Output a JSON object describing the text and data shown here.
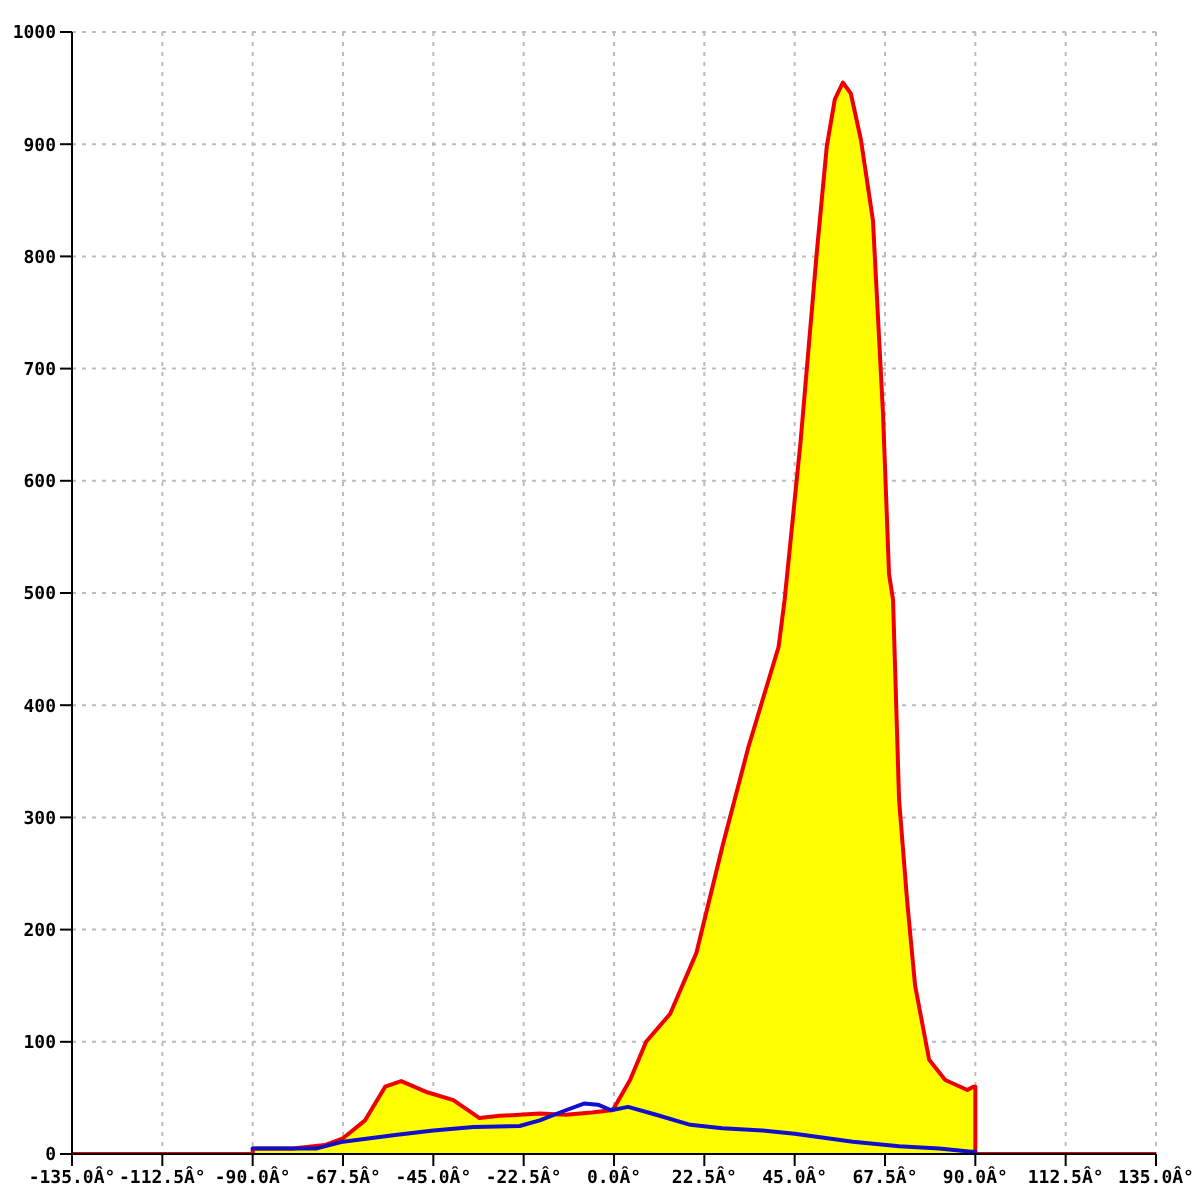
{
  "chart_data": {
    "type": "area",
    "xlim": [
      -135,
      135
    ],
    "xticks": [
      {
        "value": -135,
        "label": "-135.0Â°"
      },
      {
        "value": -112.5,
        "label": "-112.5Â°"
      },
      {
        "value": -90,
        "label": "-90.0Â°"
      },
      {
        "value": -67.5,
        "label": "-67.5Â°"
      },
      {
        "value": -45,
        "label": "-45.0Â°"
      },
      {
        "value": -22.5,
        "label": "-22.5Â°"
      },
      {
        "value": 0,
        "label": "0.0Â°"
      },
      {
        "value": 22.5,
        "label": "22.5Â°"
      },
      {
        "value": 45,
        "label": "45.0Â°"
      },
      {
        "value": 67.5,
        "label": "67.5Â°"
      },
      {
        "value": 90,
        "label": "90.0Â°"
      },
      {
        "value": 112.5,
        "label": "112.5Â°"
      },
      {
        "value": 135,
        "label": "135.0Â°"
      }
    ],
    "ylim": [
      0,
      1000
    ],
    "yticks": [
      0,
      100,
      200,
      300,
      400,
      500,
      600,
      700,
      800,
      900,
      1000
    ],
    "grid": true,
    "series": [
      {
        "color": "#ffff00",
        "x": [
          -135,
          -90,
          -90,
          -80,
          -72,
          -67.5,
          -62,
          -57,
          -53,
          -46.5,
          -40,
          -33.5,
          -28.5,
          -18.5,
          -12,
          -5.5,
          -0.7,
          0,
          4,
          8,
          14,
          20.5,
          27,
          33.5,
          41,
          42.5,
          46.5,
          50.5,
          53,
          55,
          57,
          59,
          61.5,
          64.5,
          67,
          68.5,
          69.5,
          71,
          73,
          75,
          78.5,
          82.5,
          88,
          89.5,
          90,
          90,
          135
        ],
        "values": [
          0,
          0,
          5,
          5,
          8,
          14,
          30,
          60,
          65,
          55,
          48,
          32,
          34,
          36,
          35,
          37,
          39,
          41,
          66,
          100,
          125,
          179,
          274,
          363,
          452,
          494,
          636,
          803,
          898,
          940,
          955,
          945,
          904,
          832,
          660,
          517,
          494,
          316,
          226,
          150,
          84,
          66,
          57,
          60,
          60,
          0,
          0
        ]
      },
      {
        "type": "line",
        "color": "#1010cc",
        "x": [
          -90,
          -74,
          -67.5,
          -54.5,
          -45,
          -35,
          -23.5,
          -18.5,
          -12,
          -7.5,
          -4,
          -0.7,
          3.5,
          10.5,
          19,
          27,
          37,
          45,
          59.5,
          71,
          81,
          89,
          90
        ],
        "values": [
          5,
          5,
          11,
          17,
          21,
          24,
          25,
          30,
          39,
          45,
          44,
          39,
          42,
          35,
          26,
          23,
          21,
          18,
          11,
          7,
          5,
          2,
          2
        ]
      }
    ]
  }
}
